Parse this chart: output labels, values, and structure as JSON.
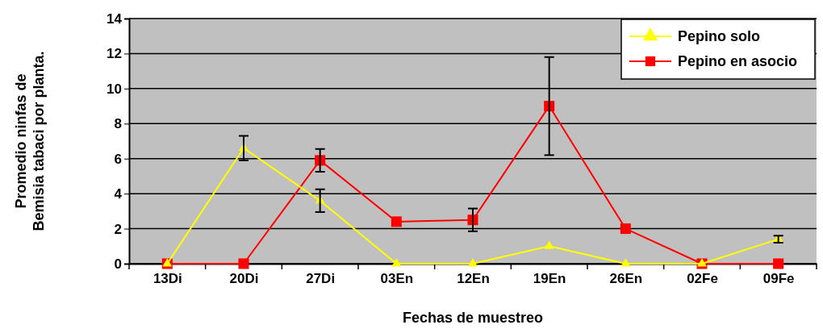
{
  "chart_data": {
    "type": "line",
    "xlabel": "Fechas de muestreo",
    "ylabel": "Promedio ninfas de Bemisia tabaci por planta.",
    "categories": [
      "13Di",
      "20Di",
      "27Di",
      "03En",
      "12En",
      "19En",
      "26En",
      "02Fe",
      "09Fe"
    ],
    "ylim": [
      0,
      14
    ],
    "yticks": [
      0,
      2,
      4,
      6,
      8,
      10,
      12,
      14
    ],
    "grid": "y",
    "legend": "top right",
    "series": [
      {
        "name": "Pepino solo",
        "color": "#ffff00",
        "marker": "triangle",
        "values": [
          0,
          6.6,
          3.6,
          0,
          0,
          1.0,
          0,
          0,
          1.4
        ],
        "errors": [
          null,
          0.7,
          0.65,
          null,
          null,
          null,
          null,
          null,
          0.2
        ]
      },
      {
        "name": "Pepino en asocio",
        "color": "#ff0000",
        "marker": "square",
        "values": [
          0,
          0,
          5.9,
          2.4,
          2.5,
          9.0,
          2.0,
          0,
          0
        ],
        "errors": [
          null,
          null,
          0.65,
          null,
          0.65,
          2.8,
          null,
          null,
          null
        ]
      }
    ]
  }
}
